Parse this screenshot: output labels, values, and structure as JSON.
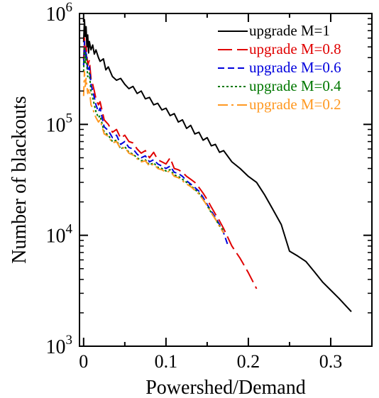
{
  "chart_data": {
    "type": "line",
    "xlabel": "Powershed/Demand",
    "ylabel": "Number of blackouts",
    "xlim": [
      -0.005,
      0.35
    ],
    "ylim": [
      1000,
      1000000
    ],
    "yscale": "log",
    "x_ticks": [
      {
        "value": 0,
        "label": "0"
      },
      {
        "value": 0.1,
        "label": "0.1"
      },
      {
        "value": 0.2,
        "label": "0.2"
      },
      {
        "value": 0.3,
        "label": "0.3"
      }
    ],
    "y_ticks": [
      {
        "value": 1000,
        "base": "10",
        "exp": "3"
      },
      {
        "value": 10000,
        "base": "10",
        "exp": "4"
      },
      {
        "value": 100000,
        "base": "10",
        "exp": "5"
      },
      {
        "value": 1000000,
        "base": "10",
        "exp": "6"
      }
    ],
    "legend_position": "top-right",
    "series": [
      {
        "name": "upgrade M=1",
        "color": "#000000",
        "dash": "solid",
        "points": [
          [
            0.0,
            550000
          ],
          [
            0.001,
            880000
          ],
          [
            0.002,
            620000
          ],
          [
            0.003,
            760000
          ],
          [
            0.004,
            500000
          ],
          [
            0.005,
            640000
          ],
          [
            0.006,
            440000
          ],
          [
            0.007,
            560000
          ],
          [
            0.009,
            470000
          ],
          [
            0.011,
            520000
          ],
          [
            0.013,
            430000
          ],
          [
            0.015,
            470000
          ],
          [
            0.018,
            400000
          ],
          [
            0.02,
            370000
          ],
          [
            0.024,
            390000
          ],
          [
            0.027,
            310000
          ],
          [
            0.03,
            330000
          ],
          [
            0.035,
            270000
          ],
          [
            0.04,
            250000
          ],
          [
            0.045,
            260000
          ],
          [
            0.05,
            230000
          ],
          [
            0.055,
            210000
          ],
          [
            0.06,
            220000
          ],
          [
            0.065,
            190000
          ],
          [
            0.07,
            200000
          ],
          [
            0.075,
            170000
          ],
          [
            0.08,
            175000
          ],
          [
            0.085,
            150000
          ],
          [
            0.09,
            155000
          ],
          [
            0.095,
            135000
          ],
          [
            0.1,
            140000
          ],
          [
            0.105,
            120000
          ],
          [
            0.11,
            125000
          ],
          [
            0.115,
            105000
          ],
          [
            0.12,
            110000
          ],
          [
            0.125,
            92000
          ],
          [
            0.13,
            98000
          ],
          [
            0.135,
            82000
          ],
          [
            0.14,
            85000
          ],
          [
            0.145,
            72000
          ],
          [
            0.15,
            76000
          ],
          [
            0.155,
            64000
          ],
          [
            0.16,
            66000
          ],
          [
            0.165,
            56000
          ],
          [
            0.17,
            58000
          ],
          [
            0.18,
            46000
          ],
          [
            0.19,
            40000
          ],
          [
            0.2,
            34000
          ],
          [
            0.21,
            30000
          ],
          [
            0.22,
            23000
          ],
          [
            0.23,
            17000
          ],
          [
            0.24,
            12500
          ],
          [
            0.25,
            7200
          ],
          [
            0.26,
            6500
          ],
          [
            0.27,
            5800
          ],
          [
            0.28,
            4700
          ],
          [
            0.29,
            3800
          ],
          [
            0.3,
            3200
          ],
          [
            0.31,
            2700
          ],
          [
            0.325,
            2050
          ]
        ]
      },
      {
        "name": "upgrade M=0.8",
        "color": "#e00000",
        "dash": "long-dash",
        "points": [
          [
            0.0,
            380000
          ],
          [
            0.001,
            600000
          ],
          [
            0.002,
            420000
          ],
          [
            0.003,
            500000
          ],
          [
            0.005,
            340000
          ],
          [
            0.007,
            380000
          ],
          [
            0.009,
            260000
          ],
          [
            0.011,
            230000
          ],
          [
            0.013,
            200000
          ],
          [
            0.015,
            170000
          ],
          [
            0.018,
            150000
          ],
          [
            0.02,
            160000
          ],
          [
            0.025,
            110000
          ],
          [
            0.03,
            100000
          ],
          [
            0.035,
            85000
          ],
          [
            0.04,
            90000
          ],
          [
            0.045,
            75000
          ],
          [
            0.05,
            80000
          ],
          [
            0.055,
            70000
          ],
          [
            0.06,
            68000
          ],
          [
            0.065,
            60000
          ],
          [
            0.07,
            55000
          ],
          [
            0.075,
            58000
          ],
          [
            0.08,
            50000
          ],
          [
            0.085,
            56000
          ],
          [
            0.09,
            48000
          ],
          [
            0.095,
            46000
          ],
          [
            0.1,
            44000
          ],
          [
            0.105,
            50000
          ],
          [
            0.11,
            40000
          ],
          [
            0.115,
            39000
          ],
          [
            0.12,
            37000
          ],
          [
            0.125,
            34000
          ],
          [
            0.13,
            32000
          ],
          [
            0.135,
            30000
          ],
          [
            0.14,
            27000
          ],
          [
            0.145,
            24000
          ],
          [
            0.15,
            21000
          ],
          [
            0.155,
            18000
          ],
          [
            0.16,
            15500
          ],
          [
            0.165,
            13500
          ],
          [
            0.17,
            11500
          ],
          [
            0.18,
            8000
          ],
          [
            0.19,
            6200
          ],
          [
            0.2,
            4600
          ],
          [
            0.21,
            3300
          ]
        ]
      },
      {
        "name": "upgrade M=0.6",
        "color": "#0000dd",
        "dash": "dash",
        "points": [
          [
            0.0,
            340000
          ],
          [
            0.001,
            560000
          ],
          [
            0.002,
            400000
          ],
          [
            0.003,
            460000
          ],
          [
            0.005,
            300000
          ],
          [
            0.007,
            330000
          ],
          [
            0.009,
            230000
          ],
          [
            0.011,
            200000
          ],
          [
            0.013,
            175000
          ],
          [
            0.015,
            150000
          ],
          [
            0.018,
            130000
          ],
          [
            0.02,
            140000
          ],
          [
            0.025,
            95000
          ],
          [
            0.03,
            88000
          ],
          [
            0.035,
            76000
          ],
          [
            0.04,
            80000
          ],
          [
            0.045,
            66000
          ],
          [
            0.05,
            70000
          ],
          [
            0.055,
            62000
          ],
          [
            0.06,
            60000
          ],
          [
            0.065,
            54000
          ],
          [
            0.07,
            50000
          ],
          [
            0.075,
            52000
          ],
          [
            0.08,
            46000
          ],
          [
            0.085,
            48000
          ],
          [
            0.09,
            44000
          ],
          [
            0.095,
            42000
          ],
          [
            0.1,
            40000
          ],
          [
            0.105,
            42000
          ],
          [
            0.11,
            37000
          ],
          [
            0.115,
            36000
          ],
          [
            0.12,
            34000
          ],
          [
            0.125,
            31000
          ],
          [
            0.13,
            29000
          ],
          [
            0.135,
            27000
          ],
          [
            0.14,
            25000
          ],
          [
            0.145,
            22000
          ],
          [
            0.15,
            19000
          ],
          [
            0.155,
            16500
          ],
          [
            0.16,
            14500
          ],
          [
            0.165,
            12500
          ],
          [
            0.17,
            10500
          ],
          [
            0.175,
            8200
          ]
        ]
      },
      {
        "name": "upgrade M=0.4",
        "color": "#007700",
        "dash": "dot",
        "points": [
          [
            0.0,
            300000
          ],
          [
            0.001,
            500000
          ],
          [
            0.002,
            360000
          ],
          [
            0.003,
            420000
          ],
          [
            0.005,
            270000
          ],
          [
            0.007,
            290000
          ],
          [
            0.009,
            200000
          ],
          [
            0.011,
            175000
          ],
          [
            0.013,
            150000
          ],
          [
            0.015,
            130000
          ],
          [
            0.018,
            115000
          ],
          [
            0.02,
            120000
          ],
          [
            0.025,
            85000
          ],
          [
            0.03,
            80000
          ],
          [
            0.035,
            70000
          ],
          [
            0.04,
            72000
          ],
          [
            0.045,
            60000
          ],
          [
            0.05,
            63000
          ],
          [
            0.055,
            56000
          ],
          [
            0.06,
            54000
          ],
          [
            0.065,
            50000
          ],
          [
            0.07,
            47000
          ],
          [
            0.075,
            48000
          ],
          [
            0.08,
            43000
          ],
          [
            0.085,
            45000
          ],
          [
            0.09,
            41000
          ],
          [
            0.095,
            40000
          ],
          [
            0.1,
            38000
          ],
          [
            0.105,
            39000
          ],
          [
            0.11,
            35000
          ],
          [
            0.115,
            34000
          ],
          [
            0.12,
            32000
          ],
          [
            0.125,
            30000
          ],
          [
            0.13,
            28000
          ],
          [
            0.135,
            26000
          ],
          [
            0.14,
            24000
          ],
          [
            0.145,
            21000
          ],
          [
            0.15,
            18500
          ],
          [
            0.155,
            16000
          ],
          [
            0.16,
            14000
          ],
          [
            0.165,
            12200
          ],
          [
            0.17,
            11000
          ]
        ]
      },
      {
        "name": "upgrade M=0.2",
        "color": "#ff9922",
        "dash": "dash-dot",
        "points": [
          [
            0.0,
            180000
          ],
          [
            0.001,
            300000
          ],
          [
            0.002,
            220000
          ],
          [
            0.003,
            260000
          ],
          [
            0.005,
            190000
          ],
          [
            0.007,
            210000
          ],
          [
            0.009,
            150000
          ],
          [
            0.011,
            140000
          ],
          [
            0.013,
            125000
          ],
          [
            0.015,
            115000
          ],
          [
            0.018,
            105000
          ],
          [
            0.02,
            110000
          ],
          [
            0.025,
            82000
          ],
          [
            0.03,
            78000
          ],
          [
            0.035,
            68000
          ],
          [
            0.04,
            70000
          ],
          [
            0.045,
            60000
          ],
          [
            0.05,
            62000
          ],
          [
            0.055,
            55000
          ],
          [
            0.06,
            53000
          ],
          [
            0.065,
            49000
          ],
          [
            0.07,
            46000
          ],
          [
            0.075,
            47000
          ],
          [
            0.08,
            42000
          ],
          [
            0.085,
            44000
          ],
          [
            0.09,
            40000
          ],
          [
            0.095,
            39000
          ],
          [
            0.1,
            37000
          ],
          [
            0.105,
            38000
          ],
          [
            0.11,
            34000
          ],
          [
            0.115,
            33000
          ],
          [
            0.12,
            31000
          ],
          [
            0.125,
            29000
          ],
          [
            0.13,
            27500
          ],
          [
            0.135,
            25500
          ],
          [
            0.14,
            23500
          ],
          [
            0.145,
            21000
          ],
          [
            0.15,
            18500
          ],
          [
            0.155,
            16000
          ],
          [
            0.16,
            14000
          ],
          [
            0.165,
            12000
          ],
          [
            0.17,
            10500
          ]
        ]
      }
    ]
  }
}
